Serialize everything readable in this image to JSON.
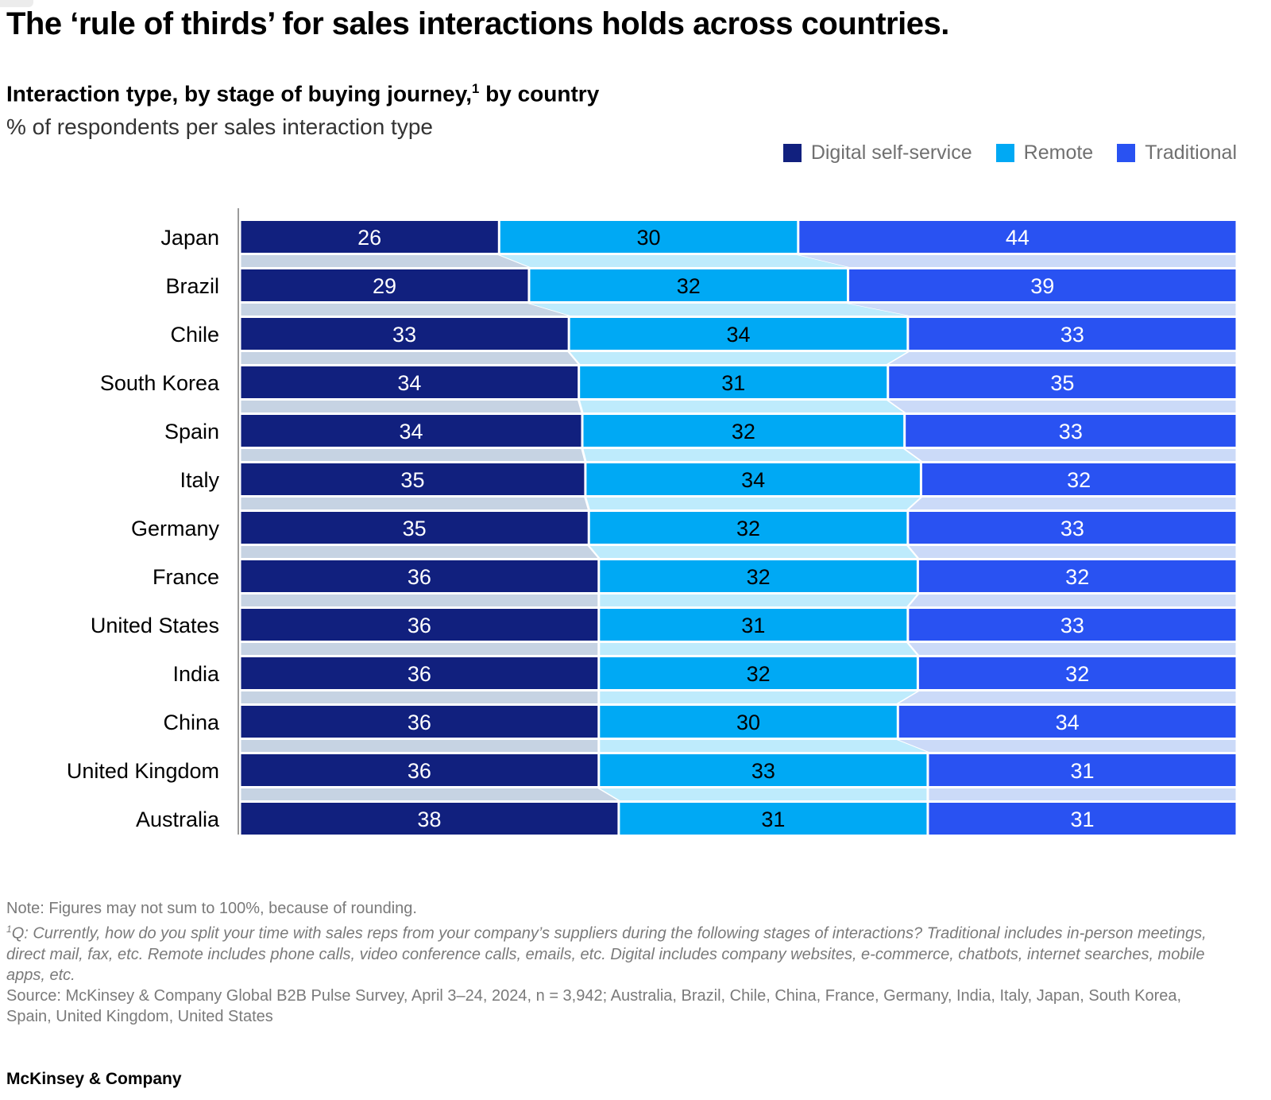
{
  "header": {
    "title": "The ‘rule of thirds’ for sales interactions holds across countries.",
    "subtitle_main": "Interaction type, by stage of buying journey,",
    "subtitle_sup": "1",
    "subtitle_tail": " by country",
    "unit_label": "% of respondents per sales interaction type"
  },
  "legend": {
    "items": [
      {
        "label": "Digital self-service",
        "color": "#11207E",
        "icon": "digital-self-service-swatch"
      },
      {
        "label": "Remote",
        "color": "#00A9F4",
        "icon": "remote-swatch"
      },
      {
        "label": "Traditional",
        "color": "#2952F2",
        "icon": "traditional-swatch"
      }
    ]
  },
  "chart_data": {
    "type": "bar",
    "orientation": "horizontal",
    "stacked": true,
    "normalized_to_100": true,
    "value_labels": true,
    "grid": false,
    "xlim": [
      0,
      100
    ],
    "unit": "% of respondents per sales interaction type",
    "categories": [
      "Japan",
      "Brazil",
      "Chile",
      "South Korea",
      "Spain",
      "Italy",
      "Germany",
      "France",
      "United States",
      "India",
      "China",
      "United Kingdom",
      "Australia"
    ],
    "series": [
      {
        "name": "Digital self-service",
        "color": "#11207E",
        "connector_color": "#C6D3E3",
        "label_color": "#FFFFFF",
        "values": [
          26,
          29,
          33,
          34,
          34,
          35,
          35,
          36,
          36,
          36,
          36,
          36,
          38
        ]
      },
      {
        "name": "Remote",
        "color": "#00A9F4",
        "connector_color": "#BEEBFC",
        "label_color": "#000000",
        "values": [
          30,
          32,
          34,
          31,
          32,
          34,
          32,
          32,
          31,
          32,
          30,
          33,
          31
        ]
      },
      {
        "name": "Traditional",
        "color": "#2952F2",
        "connector_color": "#CBDAF8",
        "label_color": "#FFFFFF",
        "values": [
          44,
          39,
          33,
          35,
          33,
          32,
          33,
          32,
          33,
          32,
          34,
          31,
          31
        ]
      }
    ]
  },
  "footnotes": {
    "note": "Note: Figures may not sum to 100%, because of rounding.",
    "q_sup": "1",
    "q_prefix": "Q: ",
    "q_text": "Currently, how do you split your time with sales reps from your company’s suppliers during the following stages of interactions? Traditional includes in-person meetings, direct mail, fax, etc. Remote includes phone calls, video conference calls, emails, etc. Digital includes company websites, e-commerce, chatbots, internet searches, mobile apps, etc.",
    "source": "Source: McKinsey & Company Global B2B Pulse Survey, April 3–24, 2024, n = 3,942; Australia, Brazil, Chile, China, France, Germany, India, Italy, Japan, South Korea, Spain, United Kingdom, United States"
  },
  "footer": {
    "brand": "McKinsey & Company"
  }
}
